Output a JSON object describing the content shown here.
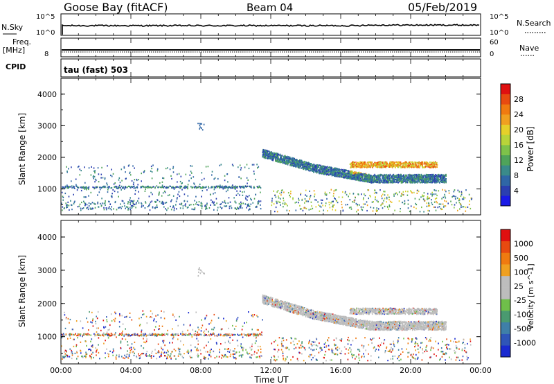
{
  "header": {
    "station": "Goose Bay (fitACF)",
    "beam": "Beam 04",
    "date": "05/Feb/2019"
  },
  "strips": {
    "nsky_label": "N.Sky",
    "nsky_ticks": [
      "10^5",
      "10^0"
    ],
    "nsearch_label": "N.Search",
    "nsearch_ticks": [
      "10^5",
      "10^0"
    ],
    "freq_label": "Freq.",
    "freq_unit": "[MHz]",
    "freq_ticks": [
      "8"
    ],
    "nave_label": "Nave",
    "nave_ticks": [
      "60",
      "0"
    ],
    "cpid_label": "CPID",
    "cpid_value": "tau (fast) 503"
  },
  "colors": {
    "power_scale": [
      "#1a1ae6",
      "#2b3fb0",
      "#2f66a6",
      "#3a8a8a",
      "#4fa35a",
      "#7ec24a",
      "#b8d43a",
      "#e6d02a",
      "#f0a020",
      "#f07a10",
      "#e84a10",
      "#e01010"
    ],
    "velocity_scale": [
      "#1a2ad0",
      "#2f55b8",
      "#3f7fa8",
      "#4a9a70",
      "#6fbf4a",
      "#bdbdbd",
      "#bdbdbd",
      "#f0a020",
      "#f07a10",
      "#e84a10",
      "#e01010"
    ]
  },
  "chart_data": [
    {
      "type": "heatmap",
      "panel": "power",
      "ylabel": "Slant Range [km]",
      "yticks": [
        "1000",
        "2000",
        "3000",
        "4000"
      ],
      "ylim": [
        180,
        4500
      ],
      "xlim": [
        "00:00",
        "00:00"
      ],
      "colorbar_label": "Power [dB]",
      "colorbar_ticks": [
        "4",
        "8",
        "12",
        "16",
        "20",
        "24",
        "28"
      ],
      "colorbar_range": [
        0,
        32
      ],
      "scatter_regions": [
        {
          "t": [
            0.0,
            11.5
          ],
          "r": [
            350,
            1800
          ],
          "level": "low"
        },
        {
          "t": [
            11.5,
            22.0
          ],
          "r": [
            1300,
            2200
          ],
          "level": "mixed"
        },
        {
          "t": [
            16.5,
            21.5
          ],
          "r": [
            1500,
            1900
          ],
          "level": "high"
        }
      ]
    },
    {
      "type": "heatmap",
      "panel": "velocity",
      "ylabel": "Slant Range [km]",
      "yticks": [
        "1000",
        "2000",
        "3000",
        "4000"
      ],
      "ylim": [
        180,
        4500
      ],
      "xlabel": "Time UT",
      "xticks": [
        "00:00",
        "04:00",
        "08:00",
        "12:00",
        "16:00",
        "20:00",
        "00:00"
      ],
      "colorbar_label": "Velocity [m s^-1]",
      "colorbar_ticks": [
        "1000",
        "500",
        "100",
        "25",
        "-25",
        "-100",
        "-500",
        "-1000"
      ],
      "scatter_regions": [
        {
          "t": [
            0.0,
            11.5
          ],
          "r": [
            350,
            1800
          ],
          "level": "mixed"
        },
        {
          "t": [
            11.5,
            22.0
          ],
          "r": [
            1300,
            2200
          ],
          "level": "grey"
        }
      ]
    }
  ]
}
